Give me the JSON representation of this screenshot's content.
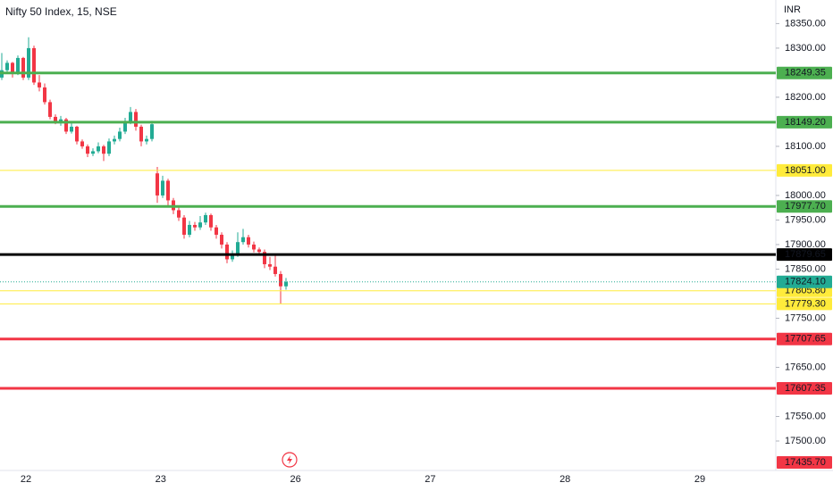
{
  "chart_data": {
    "type": "candlestick",
    "title": "Nifty 50 Index, 15, NSE",
    "currency": "INR",
    "up_color": "#22ab94",
    "down_color": "#f23645",
    "ylim": [
      17440,
      18398
    ],
    "yticks": [
      {
        "value": 18350,
        "label": "18350.00"
      },
      {
        "value": 18300,
        "label": "18300.00"
      },
      {
        "value": 18200,
        "label": "18200.00"
      },
      {
        "value": 18100,
        "label": "18100.00"
      },
      {
        "value": 18000,
        "label": "18000.00"
      },
      {
        "value": 17950,
        "label": "17950.00"
      },
      {
        "value": 17900,
        "label": "17900.00"
      },
      {
        "value": 17850,
        "label": "17850.00"
      },
      {
        "value": 17750,
        "label": "17750.00"
      },
      {
        "value": 17650,
        "label": "17650.00"
      },
      {
        "value": 17550,
        "label": "17550.00"
      },
      {
        "value": 17500,
        "label": "17500.00"
      }
    ],
    "day_labels": [
      "22",
      "23",
      "26",
      "27",
      "28",
      "29"
    ],
    "candles": [
      [
        18240,
        18290,
        18235,
        18255
      ],
      [
        18255,
        18275,
        18248,
        18270
      ],
      [
        18270,
        18272,
        18240,
        18250
      ],
      [
        18250,
        18285,
        18245,
        18280
      ],
      [
        18280,
        18282,
        18235,
        18240
      ],
      [
        18240,
        18322,
        18235,
        18300
      ],
      [
        18300,
        18305,
        18225,
        18230
      ],
      [
        18230,
        18245,
        18212,
        18220
      ],
      [
        18220,
        18228,
        18185,
        18190
      ],
      [
        18190,
        18195,
        18155,
        18160
      ],
      [
        18160,
        18165,
        18145,
        18150
      ],
      [
        18150,
        18162,
        18142,
        18155
      ],
      [
        18155,
        18158,
        18125,
        18130
      ],
      [
        18130,
        18148,
        18126,
        18140
      ],
      [
        18140,
        18142,
        18104,
        18110
      ],
      [
        18110,
        18114,
        18095,
        18100
      ],
      [
        18100,
        18104,
        18078,
        18085
      ],
      [
        18085,
        18096,
        18080,
        18090
      ],
      [
        18090,
        18108,
        18086,
        18100
      ],
      [
        18100,
        18103,
        18070,
        18085
      ],
      [
        18085,
        18116,
        18080,
        18110
      ],
      [
        18110,
        18122,
        18104,
        18115
      ],
      [
        18115,
        18138,
        18110,
        18130
      ],
      [
        18130,
        18158,
        18125,
        18150
      ],
      [
        18150,
        18180,
        18145,
        18170
      ],
      [
        18170,
        18176,
        18132,
        18140
      ],
      [
        18140,
        18144,
        18100,
        18110
      ],
      [
        18110,
        18122,
        18104,
        18115
      ],
      [
        18115,
        18152,
        18110,
        18145
      ],
      [
        18045,
        18058,
        17985,
        18000
      ],
      [
        18000,
        18040,
        17995,
        18030
      ],
      [
        18030,
        18034,
        17980,
        17990
      ],
      [
        17990,
        17995,
        17962,
        17970
      ],
      [
        17970,
        17978,
        17948,
        17955
      ],
      [
        17955,
        17960,
        17912,
        17920
      ],
      [
        17920,
        17948,
        17915,
        17940
      ],
      [
        17940,
        17946,
        17928,
        17935
      ],
      [
        17935,
        17958,
        17930,
        17945
      ],
      [
        17945,
        17965,
        17940,
        17960
      ],
      [
        17960,
        17963,
        17928,
        17935
      ],
      [
        17935,
        17940,
        17912,
        17920
      ],
      [
        17920,
        17925,
        17892,
        17900
      ],
      [
        17900,
        17905,
        17862,
        17870
      ],
      [
        17870,
        17888,
        17865,
        17880
      ],
      [
        17880,
        17925,
        17875,
        17905
      ],
      [
        17905,
        17932,
        17900,
        17915
      ],
      [
        17915,
        17920,
        17894,
        17900
      ],
      [
        17900,
        17906,
        17884,
        17890
      ],
      [
        17890,
        17894,
        17878,
        17885
      ],
      [
        17885,
        17890,
        17852,
        17860
      ],
      [
        17860,
        17875,
        17848,
        17855
      ],
      [
        17855,
        17878,
        17835,
        17840
      ],
      [
        17840,
        17846,
        17779,
        17815
      ],
      [
        17815,
        17832,
        17808,
        17824.1
      ]
    ],
    "levels": [
      {
        "value": 18249.35,
        "label": "18249.35",
        "color": "#4caf50",
        "width": 3
      },
      {
        "value": 18149.2,
        "label": "18149.20",
        "color": "#4caf50",
        "width": 3
      },
      {
        "value": 18051,
        "label": "18051.00",
        "color": "#ffeb3b",
        "width": 1
      },
      {
        "value": 17977.7,
        "label": "17977.70",
        "color": "#4caf50",
        "width": 3
      },
      {
        "value": 17879.65,
        "label": "17879.65",
        "color": "#000000",
        "width": 3
      },
      {
        "value": 17805.8,
        "label": "17805.80",
        "color": "#ffeb3b",
        "width": 1
      },
      {
        "value": 17779.3,
        "label": "17779.30",
        "color": "#ffeb3b",
        "width": 1
      },
      {
        "value": 17707.65,
        "label": "17707.65",
        "color": "#f23645",
        "width": 3
      },
      {
        "value": 17607.35,
        "label": "17607.35",
        "color": "#f23645",
        "width": 3
      },
      {
        "value": 17435.7,
        "label": "17435.70",
        "color": "#f23645",
        "width": 3
      }
    ],
    "last_price": {
      "value": 17824.1,
      "label": "17824.10",
      "color": "#22ab94"
    }
  }
}
